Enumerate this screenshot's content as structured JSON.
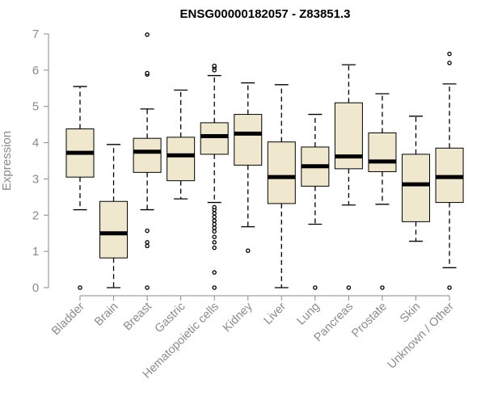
{
  "chart_data": {
    "type": "box",
    "title": "ENSG00000182057 - Z83851.3",
    "xlabel": "",
    "ylabel": "Expression",
    "ylim": [
      0,
      7
    ],
    "yticks": [
      0,
      1,
      2,
      3,
      4,
      5,
      6,
      7
    ],
    "categories": [
      "Bladder",
      "Brain",
      "Breast",
      "Gastric",
      "Hematopoietic cells",
      "Kidney",
      "Liver",
      "Lung",
      "Pancreas",
      "Prostate",
      "Skin",
      "Unknown / Other"
    ],
    "box_color": "#efe8cf",
    "boxes": [
      {
        "name": "Bladder",
        "whisker_low": 2.15,
        "q1": 3.05,
        "median": 3.72,
        "q3": 4.38,
        "whisker_high": 5.55,
        "outliers": [
          0.0
        ]
      },
      {
        "name": "Brain",
        "whisker_low": 0.0,
        "q1": 0.82,
        "median": 1.5,
        "q3": 2.38,
        "whisker_high": 3.95,
        "outliers": []
      },
      {
        "name": "Breast",
        "whisker_low": 2.15,
        "q1": 3.18,
        "median": 3.75,
        "q3": 4.12,
        "whisker_high": 4.93,
        "outliers": [
          0.0,
          1.15,
          1.25,
          1.57,
          5.88,
          5.92,
          6.98
        ]
      },
      {
        "name": "Gastric",
        "whisker_low": 2.45,
        "q1": 2.95,
        "median": 3.65,
        "q3": 4.15,
        "whisker_high": 5.45,
        "outliers": []
      },
      {
        "name": "Hematopoietic cells",
        "whisker_low": 2.35,
        "q1": 3.68,
        "median": 4.18,
        "q3": 4.55,
        "whisker_high": 5.85,
        "outliers": [
          0.0,
          0.42,
          1.1,
          1.25,
          1.4,
          1.55,
          1.65,
          1.75,
          1.85,
          1.95,
          2.05,
          2.15,
          2.22,
          6.0,
          6.08,
          6.12
        ]
      },
      {
        "name": "Kidney",
        "whisker_low": 1.68,
        "q1": 3.38,
        "median": 4.25,
        "q3": 4.78,
        "whisker_high": 5.65,
        "outliers": [
          1.02
        ]
      },
      {
        "name": "Liver",
        "whisker_low": 0.0,
        "q1": 2.32,
        "median": 3.05,
        "q3": 4.02,
        "whisker_high": 5.6,
        "outliers": []
      },
      {
        "name": "Lung",
        "whisker_low": 1.75,
        "q1": 2.8,
        "median": 3.35,
        "q3": 3.88,
        "whisker_high": 4.78,
        "outliers": [
          0.0
        ]
      },
      {
        "name": "Pancreas",
        "whisker_low": 2.28,
        "q1": 3.28,
        "median": 3.62,
        "q3": 5.1,
        "whisker_high": 6.15,
        "outliers": [
          0.0
        ]
      },
      {
        "name": "Prostate",
        "whisker_low": 2.3,
        "q1": 3.2,
        "median": 3.48,
        "q3": 4.27,
        "whisker_high": 5.35,
        "outliers": [
          0.0
        ]
      },
      {
        "name": "Skin",
        "whisker_low": 1.28,
        "q1": 1.82,
        "median": 2.85,
        "q3": 3.68,
        "whisker_high": 4.73,
        "outliers": []
      },
      {
        "name": "Unknown / Other",
        "whisker_low": 0.55,
        "q1": 2.35,
        "median": 3.05,
        "q3": 3.85,
        "whisker_high": 5.62,
        "outliers": [
          0.0,
          6.2,
          6.45
        ]
      }
    ]
  }
}
